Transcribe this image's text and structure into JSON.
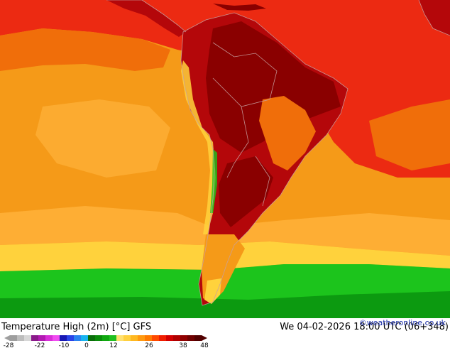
{
  "title": "Temperature High (2m) [°C] GFS",
  "datetime": "We 04-02-2026 18:00 UTC (06+348)",
  "credit": "©weatheronline.co.uk",
  "legend": {
    "ticks": [
      "-28",
      "-22",
      "-10",
      "0",
      "12",
      "26",
      "38",
      "48"
    ],
    "colors": [
      "#9e9e9e",
      "#bdbdbd",
      "#d7d7d7",
      "#8a1a8a",
      "#b21ab2",
      "#d82ed8",
      "#f04bf0",
      "#1818b4",
      "#2a44e8",
      "#2a82f0",
      "#18b4f0",
      "#0a6e0a",
      "#0a8c0a",
      "#10a810",
      "#20c020",
      "#ffe070",
      "#ffd040",
      "#ffb820",
      "#ff9a10",
      "#ff7a00",
      "#ff4a00",
      "#f01e00",
      "#d20000",
      "#b00000",
      "#900000",
      "#700000",
      "#520000"
    ]
  },
  "map_colors": {
    "orange": "#f59a18",
    "light_orange": "#ffb23a",
    "dark_orange": "#f06e0a",
    "red": "#ec2a12",
    "dark_red": "#b4070a",
    "maroon": "#8a0000",
    "yellow": "#ffd23c",
    "green": "#1cc41c",
    "dark_green": "#0c9a10"
  }
}
